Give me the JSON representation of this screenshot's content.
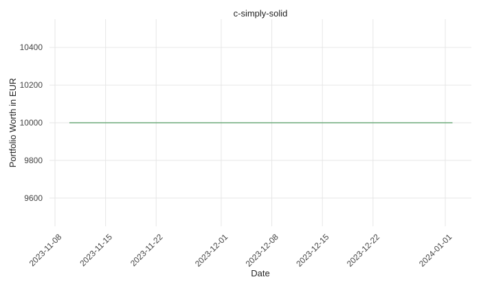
{
  "chart_data": {
    "type": "line",
    "title": "c-simply-solid",
    "xlabel": "Date",
    "ylabel": "Portfolio Worth in EUR",
    "x_ticks": [
      "2023-11-08",
      "2023-11-15",
      "2023-11-22",
      "2023-12-01",
      "2023-12-08",
      "2023-12-15",
      "2023-12-22",
      "2024-01-01"
    ],
    "y_ticks": [
      9600,
      9800,
      10000,
      10200,
      10400
    ],
    "xlim": [
      "2023-11-08",
      "2024-01-01"
    ],
    "ylim": [
      9450,
      10550
    ],
    "grid": true,
    "series": [
      {
        "color": "#6aa978",
        "x": [
          "2023-11-10",
          "2024-01-02"
        ],
        "y": [
          10000,
          10000
        ]
      }
    ]
  }
}
